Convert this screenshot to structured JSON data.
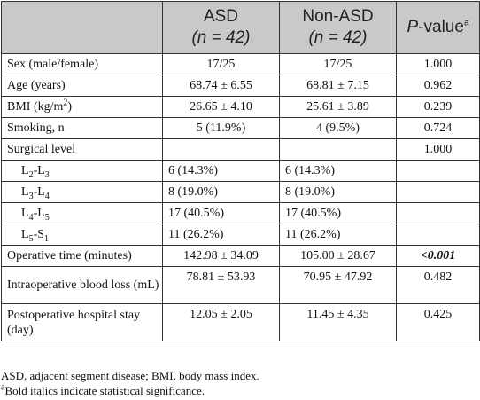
{
  "header": {
    "col1": "",
    "col2_line1": "ASD",
    "col2_line2": "(n = 42)",
    "col3_line1": "Non-ASD",
    "col3_line2": "(n = 42)",
    "col4_p": "P",
    "col4_rest": "-value",
    "col4_sup": "a"
  },
  "rows": [
    {
      "label": "Sex (male/female)",
      "asd": "17/25",
      "non_asd": "17/25",
      "p": "1.000"
    },
    {
      "label_main": "Age (years)",
      "asd": "68.74 ± 6.55",
      "non_asd": "68.81 ± 7.15",
      "p": "0.962"
    },
    {
      "label_main": "BMI (kg/m",
      "label_sup": "2",
      "label_end": ")",
      "asd": "26.65 ± 4.10",
      "non_asd": "25.61 ± 3.89",
      "p": "0.239"
    },
    {
      "label": "Smoking, n",
      "asd": "5 (11.9%)",
      "non_asd": "4 (9.5%)",
      "p": "0.724"
    },
    {
      "label": "Surgical level",
      "asd": "",
      "non_asd": "",
      "p": "1.000"
    },
    {
      "a": "L",
      "a_sub": "2",
      "b": "L",
      "b_sub": "3",
      "asd": "6 (14.3%)",
      "non_asd": "6 (14.3%)",
      "p": ""
    },
    {
      "a": "L",
      "a_sub": "3",
      "b": "L",
      "b_sub": "4",
      "asd": "8 (19.0%)",
      "non_asd": "8 (19.0%)",
      "p": ""
    },
    {
      "a": "L",
      "a_sub": "4",
      "b": "L",
      "b_sub": "5",
      "asd": "17 (40.5%)",
      "non_asd": "17 (40.5%)",
      "p": ""
    },
    {
      "a": "L",
      "a_sub": "5",
      "b": "S",
      "b_sub": "1",
      "asd": "11 (26.2%)",
      "non_asd": "11 (26.2%)",
      "p": ""
    },
    {
      "label": "Operative time (minutes)",
      "asd": "142.98 ± 34.09",
      "non_asd": "105.00 ± 28.67",
      "p": "<0.001"
    },
    {
      "label": "Intraoperative blood loss (mL)",
      "asd": "78.81 ± 53.93",
      "non_asd": "70.95 ± 47.92",
      "p": "0.482"
    },
    {
      "label": "Postoperative hospital stay (day)",
      "asd": "12.05 ± 2.05",
      "non_asd": "11.45 ± 4.35",
      "p": "0.425"
    }
  ],
  "notes": {
    "line1": "ASD, adjacent segment disease; BMI, body mass index.",
    "line2_sup": "a",
    "line2": "Bold italics indicate statistical significance."
  }
}
